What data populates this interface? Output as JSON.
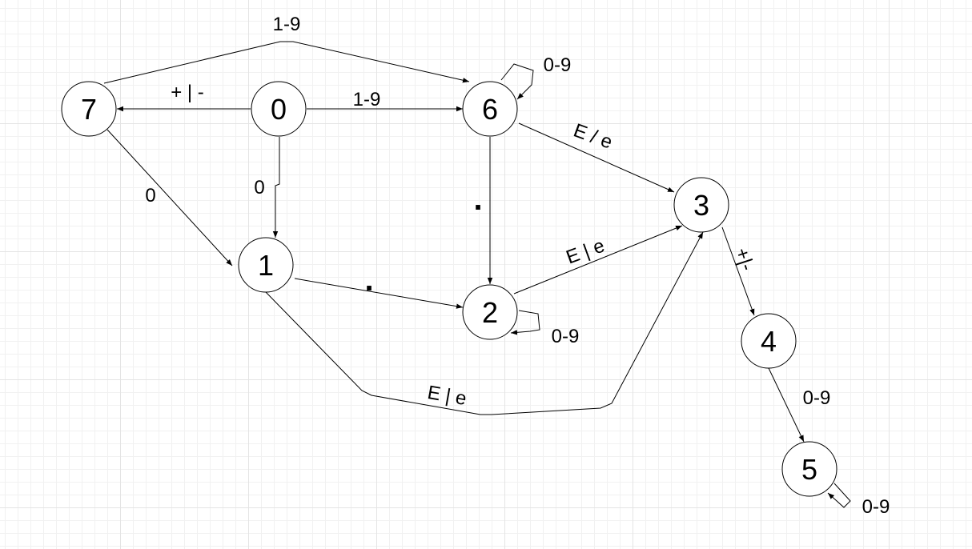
{
  "states": [
    {
      "id": "s0",
      "label": "0"
    },
    {
      "id": "s1",
      "label": "1"
    },
    {
      "id": "s2",
      "label": "2"
    },
    {
      "id": "s3",
      "label": "3"
    },
    {
      "id": "s4",
      "label": "4"
    },
    {
      "id": "s5",
      "label": "5"
    },
    {
      "id": "s6",
      "label": "6"
    },
    {
      "id": "s7",
      "label": "7"
    }
  ],
  "transitions": [
    {
      "from": "7",
      "to": "6",
      "label": "1-9"
    },
    {
      "from": "0",
      "to": "7",
      "label": "+ | -"
    },
    {
      "from": "0",
      "to": "6",
      "label": "1-9"
    },
    {
      "from": "6",
      "to": "6",
      "label": "0-9"
    },
    {
      "from": "6",
      "to": "3",
      "label": "E / e"
    },
    {
      "from": "7",
      "to": "1",
      "label": "0"
    },
    {
      "from": "0",
      "to": "1",
      "label": "0"
    },
    {
      "from": "6",
      "to": "2",
      "label": "."
    },
    {
      "from": "1",
      "to": "2",
      "label": "."
    },
    {
      "from": "2",
      "to": "3",
      "label": "E | e"
    },
    {
      "from": "2",
      "to": "2",
      "label": "0-9"
    },
    {
      "from": "3",
      "to": "4",
      "label": "+|-"
    },
    {
      "from": "1",
      "to": "3",
      "label": "E | e"
    },
    {
      "from": "4",
      "to": "5",
      "label": "0-9"
    },
    {
      "from": "5",
      "to": "5",
      "label": "0-9"
    }
  ]
}
